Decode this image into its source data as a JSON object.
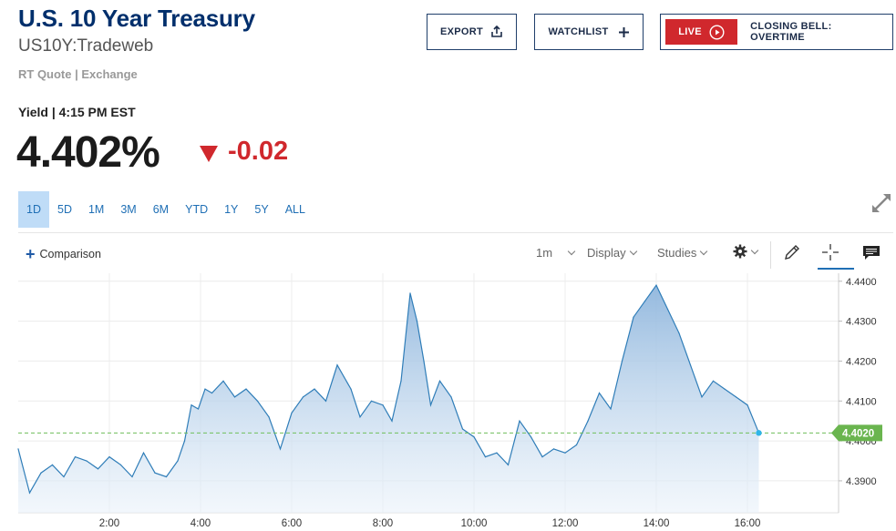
{
  "header": {
    "title": "U.S. 10 Year Treasury",
    "symbol": "US10Y:Tradeweb",
    "quote_type": "RT Quote | Exchange"
  },
  "buttons": {
    "export_label": "EXPORT",
    "watchlist_label": "WATCHLIST",
    "live_badge": "LIVE",
    "live_text": "CLOSING BELL: OVERTIME"
  },
  "quote": {
    "yield_label": "Yield | 4:15 PM EST",
    "value": "4.402%",
    "change": "-0.02",
    "change_direction": "down"
  },
  "range_tabs": [
    {
      "label": "1D",
      "active": true
    },
    {
      "label": "5D",
      "active": false
    },
    {
      "label": "1M",
      "active": false
    },
    {
      "label": "3M",
      "active": false
    },
    {
      "label": "6M",
      "active": false
    },
    {
      "label": "YTD",
      "active": false
    },
    {
      "label": "1Y",
      "active": false
    },
    {
      "label": "5Y",
      "active": false
    },
    {
      "label": "ALL",
      "active": false
    }
  ],
  "toolbar": {
    "comparison_label": "Comparison",
    "interval_label": "1m",
    "display_label": "Display",
    "studies_label": "Studies"
  },
  "icons": [
    "export-icon",
    "plus-icon",
    "play-circle-icon",
    "expand-icon",
    "gear-icon",
    "pencil-icon",
    "crosshair-icon",
    "comment-icon"
  ],
  "colors": {
    "title": "#002f6c",
    "accent": "#1f6fb5",
    "negative": "#d0282d",
    "line": "#2f7db8",
    "last_price": "#6fbf5a"
  },
  "chart_data": {
    "type": "area",
    "x_ticks": [
      "2:00",
      "4:00",
      "6:00",
      "8:00",
      "10:00",
      "12:00",
      "14:00",
      "16:00"
    ],
    "y_ticks": [
      4.39,
      4.4,
      4.41,
      4.42,
      4.43,
      4.44
    ],
    "y_tick_labels": [
      "4.3900",
      "4.4000",
      "4.4100",
      "4.4200",
      "4.4300",
      "4.4400"
    ],
    "ylim": [
      4.382,
      4.442
    ],
    "xlim_hours": [
      0.0,
      18.0
    ],
    "last_value": 4.402,
    "last_label": "4.4020",
    "grid": true,
    "x": [
      0.0,
      0.25,
      0.5,
      0.75,
      1.0,
      1.25,
      1.5,
      1.75,
      2.0,
      2.25,
      2.5,
      2.75,
      3.0,
      3.25,
      3.5,
      3.65,
      3.8,
      3.95,
      4.1,
      4.25,
      4.5,
      4.75,
      5.0,
      5.25,
      5.5,
      5.75,
      6.0,
      6.25,
      6.5,
      6.75,
      7.0,
      7.15,
      7.3,
      7.5,
      7.75,
      8.0,
      8.2,
      8.4,
      8.6,
      8.75,
      8.9,
      9.05,
      9.25,
      9.5,
      9.75,
      10.0,
      10.25,
      10.5,
      10.75,
      11.0,
      11.25,
      11.5,
      11.75,
      12.0,
      12.25,
      12.5,
      12.75,
      13.0,
      13.25,
      13.5,
      13.75,
      14.0,
      14.25,
      14.5,
      14.75,
      15.0,
      15.25,
      15.5,
      15.75,
      16.0,
      16.25
    ],
    "y": [
      4.398,
      4.387,
      4.392,
      4.394,
      4.391,
      4.396,
      4.395,
      4.393,
      4.396,
      4.394,
      4.391,
      4.397,
      4.392,
      4.391,
      4.395,
      4.4,
      4.409,
      4.408,
      4.413,
      4.412,
      4.415,
      4.411,
      4.413,
      4.41,
      4.406,
      4.398,
      4.407,
      4.411,
      4.413,
      4.41,
      4.419,
      4.416,
      4.413,
      4.406,
      4.41,
      4.409,
      4.405,
      4.415,
      4.437,
      4.43,
      4.42,
      4.409,
      4.415,
      4.411,
      4.403,
      4.401,
      4.396,
      4.397,
      4.394,
      4.405,
      4.401,
      4.396,
      4.398,
      4.397,
      4.399,
      4.405,
      4.412,
      4.408,
      4.42,
      4.431,
      4.435,
      4.439,
      4.433,
      4.427,
      4.419,
      4.411,
      4.415,
      4.413,
      4.411,
      4.409,
      4.402
    ]
  }
}
